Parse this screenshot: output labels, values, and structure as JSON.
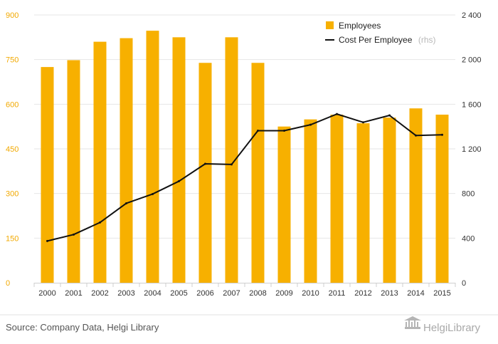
{
  "chart_data": {
    "type": "bar+line",
    "categories": [
      "2000",
      "2001",
      "2002",
      "2003",
      "2004",
      "2005",
      "2006",
      "2007",
      "2008",
      "2009",
      "2010",
      "2011",
      "2012",
      "2013",
      "2014",
      "2015"
    ],
    "series": [
      {
        "name": "Employees",
        "type": "bar",
        "axis": "left",
        "color": "#f7b000",
        "values": [
          725,
          748,
          810,
          822,
          847,
          825,
          739,
          825,
          739,
          525,
          549,
          565,
          536,
          555,
          586,
          565
        ]
      },
      {
        "name": "Cost Per Employee",
        "name_note": "(rhs)",
        "type": "line",
        "axis": "right",
        "color": "#111111",
        "values": [
          374,
          432,
          540,
          712,
          795,
          910,
          1066,
          1060,
          1363,
          1363,
          1416,
          1512,
          1438,
          1500,
          1320,
          1326
        ]
      }
    ],
    "y_left": {
      "ylim": [
        0,
        900
      ],
      "ticks": [
        "0",
        "150",
        "300",
        "450",
        "600",
        "750",
        "900"
      ],
      "tick_values": [
        0,
        150,
        300,
        450,
        600,
        750,
        900
      ]
    },
    "y_right": {
      "ylim": [
        0,
        2400
      ],
      "ticks": [
        "0",
        "400",
        "800",
        "1 200",
        "1 600",
        "2 000",
        "2 400"
      ],
      "tick_values": [
        0,
        400,
        800,
        1200,
        1600,
        2000,
        2400
      ]
    },
    "grid": true,
    "legend": "top-right"
  },
  "footer": {
    "source": "Source: Company Data, Helgi Library",
    "brand": "HelgiLibrary"
  },
  "colors": {
    "bar": "#f7b000",
    "line": "#111111",
    "grid": "#e6e6e6",
    "left_tick": "#f2a900"
  }
}
